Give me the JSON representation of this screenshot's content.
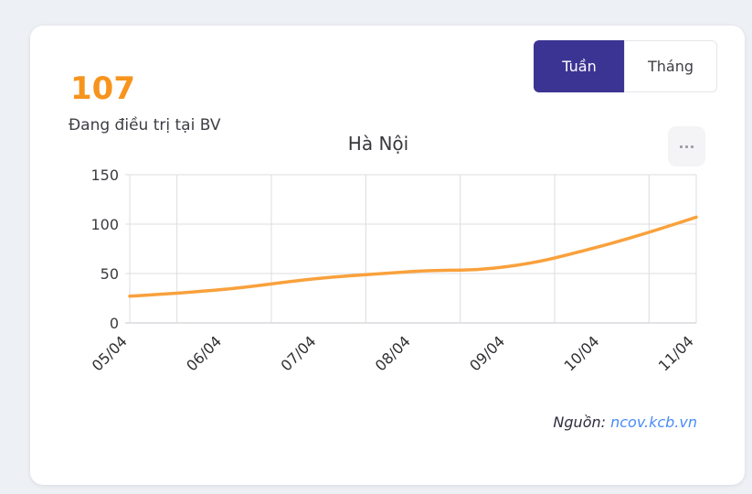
{
  "card": {
    "stat_value": "107",
    "stat_label": "Đang điều trị tại BV",
    "tabs": [
      {
        "label": "Tuần",
        "active": true
      },
      {
        "label": "Tháng",
        "active": false
      }
    ],
    "more_icon": "horizontal-ellipsis",
    "source_prefix": "Nguồn:",
    "source_link": "ncov.kcb.vn"
  },
  "chart_data": {
    "type": "line",
    "title": "Hà Nội",
    "categories": [
      "05/04",
      "06/04",
      "07/04",
      "08/04",
      "09/04",
      "10/04",
      "11/04"
    ],
    "values": [
      27,
      34,
      45,
      52,
      57,
      78,
      107
    ],
    "xlabel": "",
    "ylabel": "",
    "ylim": [
      0,
      150
    ],
    "yticks": [
      0,
      50,
      100,
      150
    ],
    "x_tick_rotation": 45,
    "grid": "on",
    "vertical_gridlines": "offset between category ticks, plus left and right plot borders",
    "legend": "none",
    "line_tension": 0.4
  },
  "colors": {
    "page-bg": "#edf0f4",
    "accent-orange": "#f7941e",
    "line-orange": "#f9a13c",
    "tab-active": "#3c3493",
    "link-blue": "#4a8cf7",
    "grid": "#dcdce0",
    "axis-text": "#3a3a40"
  }
}
